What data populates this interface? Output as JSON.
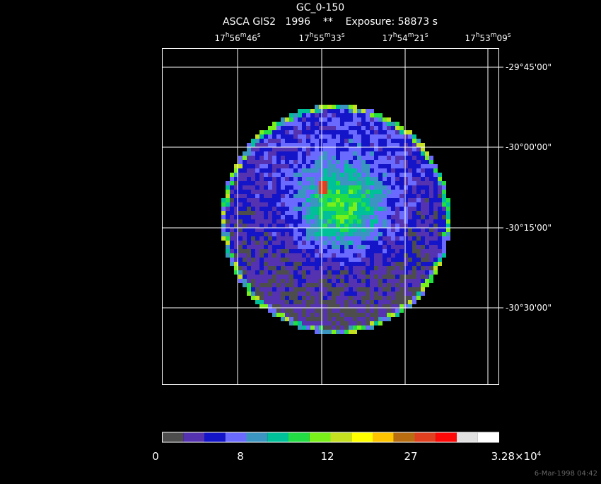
{
  "header": {
    "title": "GC_0-150",
    "subtitle": "ASCA GIS2   1996    **    Exposure: 58873 s"
  },
  "image": {
    "ra_labels": [
      [
        "17",
        "h",
        "56",
        "m",
        "46",
        "s"
      ],
      [
        "17",
        "h",
        "55",
        "m",
        "33",
        "s"
      ],
      [
        "17",
        "h",
        "54",
        "m",
        "21",
        "s"
      ],
      [
        "17",
        "h",
        "53",
        "m",
        "09",
        "s"
      ]
    ],
    "dec_labels": [
      "-29°45'00\"",
      "-30°00'00\"",
      "-30°15'00\"",
      "-30°30'00\""
    ]
  },
  "colorbar": {
    "colors": [
      "#4d4d4d",
      "#5533b0",
      "#1414c8",
      "#6a6aff",
      "#3a96c0",
      "#00c09a",
      "#22dd44",
      "#7af01a",
      "#c4e020",
      "#ffff00",
      "#ffc400",
      "#b86e10",
      "#e04020",
      "#ff0808",
      "#e0e0e0",
      "#ffffff"
    ],
    "labels": [
      [
        "0"
      ],
      [
        "8"
      ],
      [
        "12"
      ],
      [
        "27"
      ],
      [
        "3.28×10",
        "4"
      ]
    ]
  },
  "footer": {
    "date": "6-Mar-1998 04:42"
  }
}
